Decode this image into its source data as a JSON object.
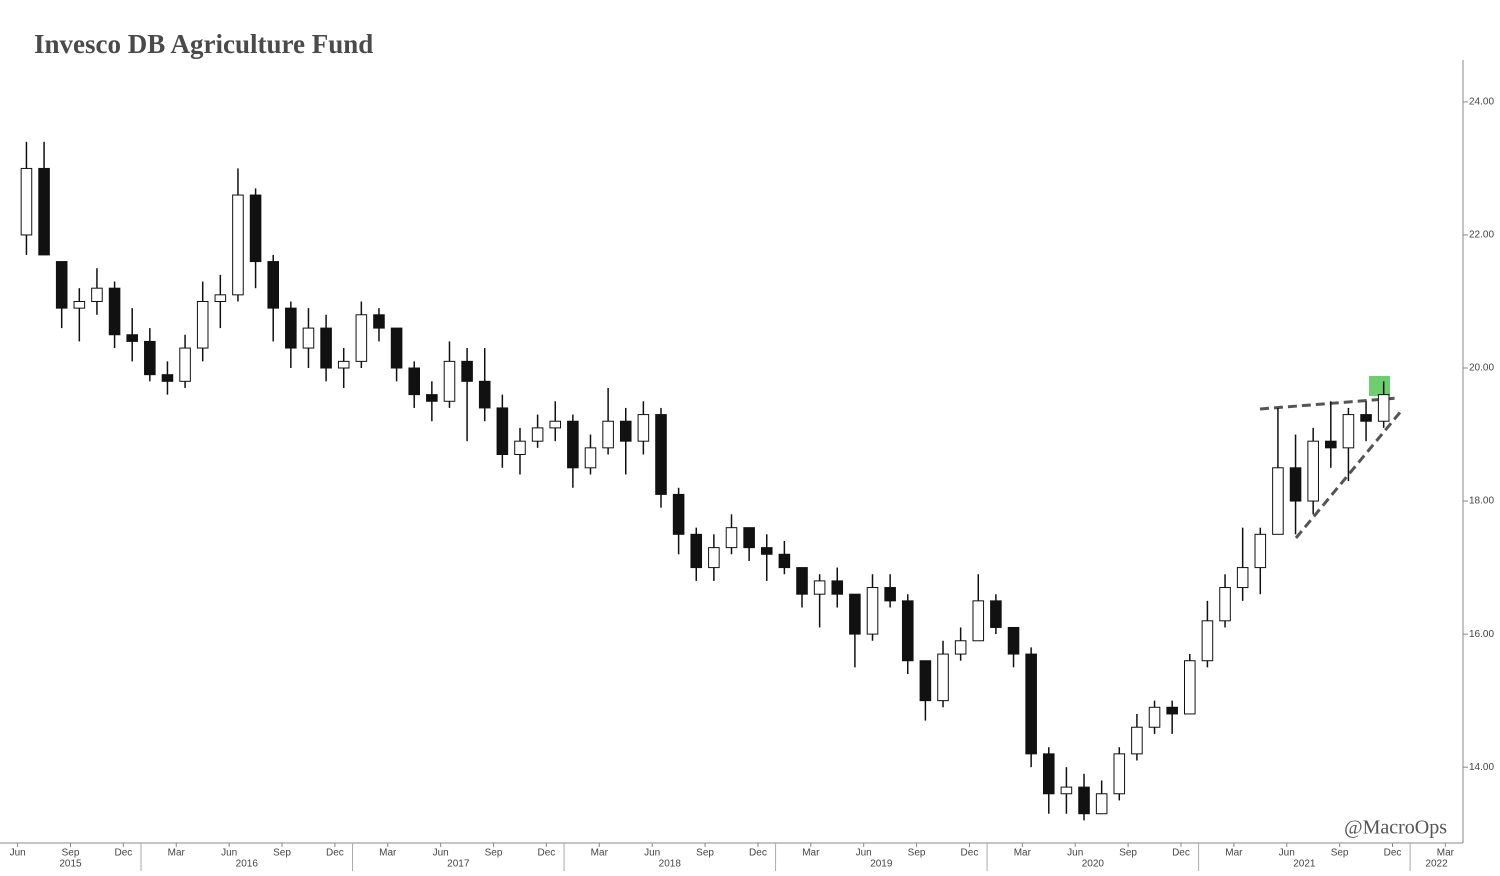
{
  "chart_data": {
    "type": "candlestick",
    "title": "Invesco DB Agriculture Fund",
    "watermark": "@MacroOps",
    "up_color": "#ffffff",
    "down_color": "#111111",
    "line_color": "#111111",
    "xlim": [
      "2015-05",
      "2022-04"
    ],
    "ylim": [
      12.86,
      24.63
    ],
    "yticks": [
      {
        "value": 14,
        "label": "14.00"
      },
      {
        "value": 16,
        "label": "16.00"
      },
      {
        "value": 18,
        "label": "18.00"
      },
      {
        "value": 20,
        "label": "20.00"
      },
      {
        "value": 22,
        "label": "22.00"
      },
      {
        "value": 24,
        "label": "24.00"
      }
    ],
    "xticks": [
      {
        "value": "2015-06",
        "label": "Jun"
      },
      {
        "value": "2015-09",
        "label": "Sep"
      },
      {
        "value": "2015-12",
        "label": "Dec"
      },
      {
        "value": "2016-03",
        "label": "Mar"
      },
      {
        "value": "2016-06",
        "label": "Jun"
      },
      {
        "value": "2016-09",
        "label": "Sep"
      },
      {
        "value": "2016-12",
        "label": "Dec"
      },
      {
        "value": "2017-03",
        "label": "Mar"
      },
      {
        "value": "2017-06",
        "label": "Jun"
      },
      {
        "value": "2017-09",
        "label": "Sep"
      },
      {
        "value": "2017-12",
        "label": "Dec"
      },
      {
        "value": "2018-03",
        "label": "Mar"
      },
      {
        "value": "2018-06",
        "label": "Jun"
      },
      {
        "value": "2018-09",
        "label": "Sep"
      },
      {
        "value": "2018-12",
        "label": "Dec"
      },
      {
        "value": "2019-03",
        "label": "Mar"
      },
      {
        "value": "2019-06",
        "label": "Jun"
      },
      {
        "value": "2019-09",
        "label": "Sep"
      },
      {
        "value": "2019-12",
        "label": "Dec"
      },
      {
        "value": "2020-03",
        "label": "Mar"
      },
      {
        "value": "2020-06",
        "label": "Jun"
      },
      {
        "value": "2020-09",
        "label": "Sep"
      },
      {
        "value": "2020-12",
        "label": "Dec"
      },
      {
        "value": "2021-03",
        "label": "Mar"
      },
      {
        "value": "2021-06",
        "label": "Jun"
      },
      {
        "value": "2021-09",
        "label": "Sep"
      },
      {
        "value": "2021-12",
        "label": "Dec"
      },
      {
        "value": "2022-03",
        "label": "Mar"
      }
    ],
    "years": [
      2015,
      2016,
      2017,
      2018,
      2019,
      2020,
      2021,
      2022
    ],
    "x": [
      "2015-06",
      "2015-07",
      "2015-08",
      "2015-09",
      "2015-10",
      "2015-11",
      "2015-12",
      "2016-01",
      "2016-02",
      "2016-03",
      "2016-04",
      "2016-05",
      "2016-06",
      "2016-07",
      "2016-08",
      "2016-09",
      "2016-10",
      "2016-11",
      "2016-12",
      "2017-01",
      "2017-02",
      "2017-03",
      "2017-04",
      "2017-05",
      "2017-06",
      "2017-07",
      "2017-08",
      "2017-09",
      "2017-10",
      "2017-11",
      "2017-12",
      "2018-01",
      "2018-02",
      "2018-03",
      "2018-04",
      "2018-05",
      "2018-06",
      "2018-07",
      "2018-08",
      "2018-09",
      "2018-10",
      "2018-11",
      "2018-12",
      "2019-01",
      "2019-02",
      "2019-03",
      "2019-04",
      "2019-05",
      "2019-06",
      "2019-07",
      "2019-08",
      "2019-09",
      "2019-10",
      "2019-11",
      "2019-12",
      "2020-01",
      "2020-02",
      "2020-03",
      "2020-04",
      "2020-05",
      "2020-06",
      "2020-07",
      "2020-08",
      "2020-09",
      "2020-10",
      "2020-11",
      "2020-12",
      "2021-01",
      "2021-02",
      "2021-03",
      "2021-04",
      "2021-05",
      "2021-06",
      "2021-07",
      "2021-08",
      "2021-09",
      "2021-10",
      "2021-11"
    ],
    "open": [
      22.0,
      23.0,
      21.6,
      20.9,
      21.0,
      21.2,
      20.5,
      20.4,
      19.9,
      19.8,
      20.3,
      21.0,
      21.1,
      22.6,
      21.6,
      20.9,
      20.3,
      20.6,
      20.0,
      20.1,
      20.8,
      20.6,
      20.0,
      19.6,
      19.5,
      20.1,
      19.8,
      19.4,
      18.7,
      18.9,
      19.1,
      19.2,
      18.5,
      18.8,
      19.2,
      18.9,
      19.3,
      18.1,
      17.5,
      17.0,
      17.3,
      17.6,
      17.3,
      17.2,
      17.0,
      16.6,
      16.8,
      16.6,
      16.0,
      16.7,
      16.5,
      15.6,
      15.0,
      15.7,
      15.9,
      16.5,
      16.1,
      15.7,
      14.2,
      13.6,
      13.7,
      13.3,
      13.6,
      14.2,
      14.6,
      14.9,
      14.8,
      15.6,
      16.2,
      16.7,
      17.0,
      17.5,
      18.5,
      18.0,
      18.9,
      18.8,
      19.3,
      19.2
    ],
    "high": [
      23.4,
      23.4,
      21.6,
      21.2,
      21.5,
      21.3,
      20.9,
      20.6,
      20.1,
      20.5,
      21.3,
      21.4,
      23.0,
      22.7,
      21.7,
      21.0,
      20.9,
      20.8,
      20.3,
      21.0,
      20.9,
      20.6,
      20.1,
      19.8,
      20.4,
      20.3,
      20.3,
      19.6,
      19.1,
      19.3,
      19.5,
      19.3,
      19.0,
      19.7,
      19.4,
      19.5,
      19.4,
      18.2,
      17.6,
      17.5,
      17.8,
      17.6,
      17.5,
      17.4,
      17.0,
      16.9,
      17.0,
      16.6,
      16.9,
      16.9,
      16.6,
      15.6,
      15.9,
      16.1,
      16.9,
      16.6,
      16.1,
      15.8,
      14.3,
      14.0,
      13.9,
      13.8,
      14.3,
      14.8,
      15.0,
      15.0,
      15.7,
      16.5,
      16.9,
      17.6,
      17.6,
      19.4,
      19.0,
      19.1,
      19.5,
      19.4,
      19.5,
      19.8
    ],
    "low": [
      21.7,
      21.7,
      20.6,
      20.4,
      20.8,
      20.3,
      20.1,
      19.8,
      19.6,
      19.7,
      20.1,
      20.6,
      21.0,
      21.2,
      20.4,
      20.0,
      20.0,
      19.8,
      19.7,
      20.0,
      20.4,
      19.8,
      19.4,
      19.2,
      19.4,
      18.9,
      19.2,
      18.5,
      18.4,
      18.8,
      18.9,
      18.2,
      18.4,
      18.7,
      18.4,
      18.7,
      17.9,
      17.2,
      16.8,
      16.8,
      17.2,
      17.1,
      16.8,
      16.9,
      16.4,
      16.1,
      16.4,
      15.5,
      15.9,
      16.4,
      15.4,
      14.7,
      14.9,
      15.6,
      15.9,
      16.0,
      15.5,
      14.0,
      13.3,
      13.3,
      13.2,
      13.3,
      13.5,
      14.1,
      14.5,
      14.5,
      14.8,
      15.5,
      16.1,
      16.5,
      16.6,
      17.5,
      17.5,
      17.8,
      18.5,
      18.3,
      18.9,
      19.1
    ],
    "close": [
      23.0,
      21.7,
      20.9,
      21.0,
      21.2,
      20.5,
      20.4,
      19.9,
      19.8,
      20.3,
      21.0,
      21.1,
      22.6,
      21.6,
      20.9,
      20.3,
      20.6,
      20.0,
      20.1,
      20.8,
      20.6,
      20.0,
      19.6,
      19.5,
      20.1,
      19.8,
      19.4,
      18.7,
      18.9,
      19.1,
      19.2,
      18.5,
      18.8,
      19.2,
      18.9,
      19.3,
      18.1,
      17.5,
      17.0,
      17.3,
      17.6,
      17.3,
      17.2,
      17.0,
      16.6,
      16.8,
      16.6,
      16.0,
      16.7,
      16.5,
      15.6,
      15.0,
      15.7,
      15.9,
      16.5,
      16.1,
      15.7,
      14.2,
      13.6,
      13.7,
      13.3,
      13.6,
      14.2,
      14.6,
      14.9,
      14.8,
      15.6,
      16.2,
      16.7,
      17.0,
      17.5,
      18.5,
      18.0,
      18.9,
      18.8,
      19.3,
      19.2,
      19.6
    ]
  }
}
